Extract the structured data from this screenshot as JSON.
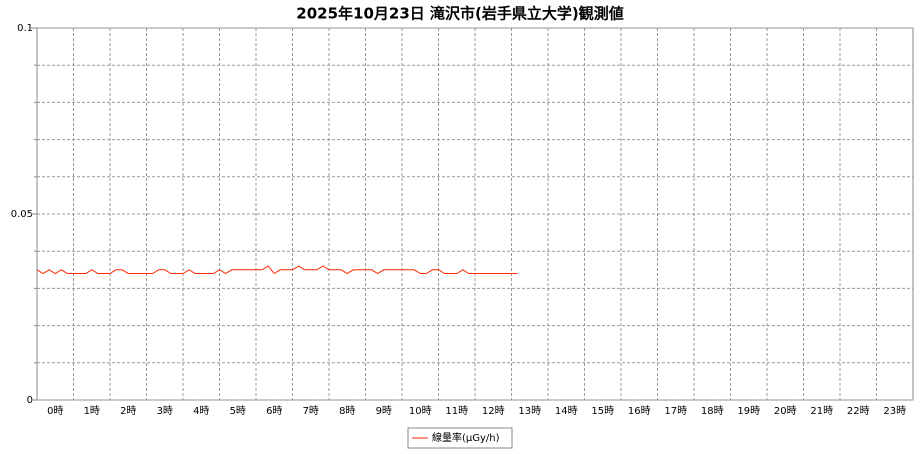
{
  "chart_data": {
    "type": "line",
    "title": "2025年10月23日 滝沢市(岩手県立大学)観測値",
    "categories": [
      "0時",
      "1時",
      "2時",
      "3時",
      "4時",
      "5時",
      "6時",
      "7時",
      "8時",
      "9時",
      "10時",
      "11時",
      "12時",
      "13時",
      "14時",
      "15時",
      "16時",
      "17時",
      "18時",
      "19時",
      "20時",
      "21時",
      "22時",
      "23時"
    ],
    "x": [
      0,
      10,
      20,
      30,
      40,
      50,
      60,
      70,
      80,
      90,
      100,
      110,
      120,
      130,
      140,
      150,
      160,
      170,
      180,
      190,
      200,
      210,
      220,
      230,
      240,
      250,
      260,
      270,
      280,
      290,
      300,
      310,
      320,
      330,
      340,
      350,
      360,
      370,
      380,
      390,
      400,
      410,
      420,
      430,
      440,
      450,
      460,
      470,
      480,
      490,
      500,
      510,
      520,
      530,
      540,
      550,
      560,
      570,
      580,
      590,
      600,
      610,
      620,
      630,
      640,
      650,
      660,
      670,
      680,
      690,
      700,
      710,
      720,
      730,
      740,
      750,
      760,
      770,
      780,
      790
    ],
    "xlim": [
      0,
      1440
    ],
    "series": [
      {
        "name": "線量率(μGy/h)",
        "color": "#ff2a00",
        "values": [
          0.035,
          0.034,
          0.035,
          0.034,
          0.035,
          0.034,
          0.034,
          0.034,
          0.034,
          0.035,
          0.034,
          0.034,
          0.034,
          0.035,
          0.035,
          0.034,
          0.034,
          0.034,
          0.034,
          0.034,
          0.035,
          0.035,
          0.034,
          0.034,
          0.034,
          0.035,
          0.034,
          0.034,
          0.034,
          0.034,
          0.035,
          0.034,
          0.035,
          0.035,
          0.035,
          0.035,
          0.035,
          0.035,
          0.036,
          0.034,
          0.035,
          0.035,
          0.035,
          0.036,
          0.035,
          0.035,
          0.035,
          0.036,
          0.035,
          0.035,
          0.035,
          0.034,
          0.035,
          0.035,
          0.035,
          0.035,
          0.034,
          0.035,
          0.035,
          0.035,
          0.035,
          0.035,
          0.035,
          0.034,
          0.034,
          0.035,
          0.035,
          0.034,
          0.034,
          0.034,
          0.035,
          0.034,
          0.034,
          0.034,
          0.034,
          0.034,
          0.034,
          0.034,
          0.034,
          0.034
        ]
      }
    ],
    "ylim": [
      0,
      0.1
    ],
    "yticks": [
      0,
      0.05,
      0.1
    ],
    "yminor": [
      0,
      0.01,
      0.02,
      0.03,
      0.04,
      0.05,
      0.06,
      0.07,
      0.08,
      0.09,
      0.1
    ],
    "grid": true,
    "legend": "bottom"
  }
}
